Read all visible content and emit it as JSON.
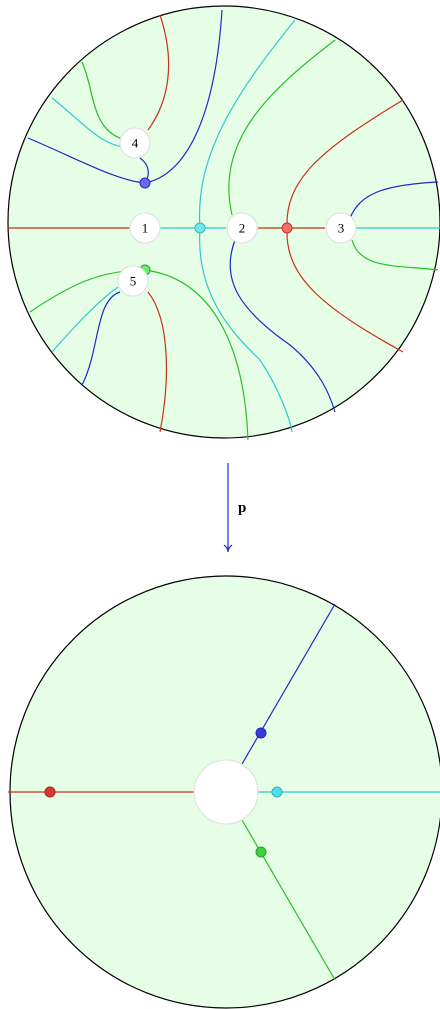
{
  "nodes": [
    {
      "label": "1"
    },
    {
      "label": "2"
    },
    {
      "label": "3"
    },
    {
      "label": "4"
    },
    {
      "label": "5"
    }
  ],
  "map_label": "p"
}
